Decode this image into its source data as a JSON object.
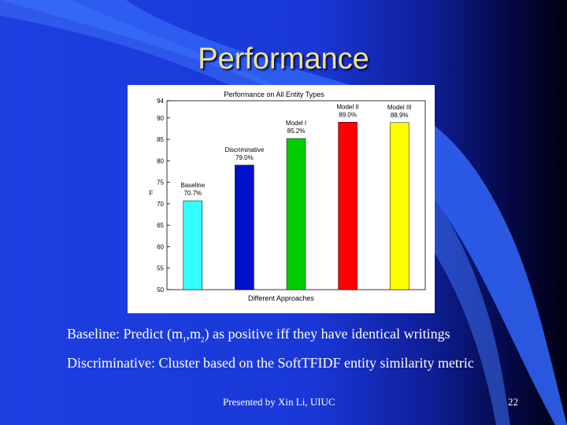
{
  "slide": {
    "title": "Performance",
    "baseline_text": {
      "prefix": "Baseline: Predict (m",
      "sub1": "1",
      "mid": ",m",
      "sub2": "2",
      "suffix": ") as positive iff they have identical writings"
    },
    "discriminative_text": "Discriminative: Cluster based on the SoftTFIDF entity similarity metric",
    "footer": "Presented by Xin Li, UIUC",
    "page_number": "22"
  },
  "colors": {
    "background": "#1d3fe0",
    "title": "#f2e28a"
  },
  "chart_data": {
    "type": "bar",
    "title": "Performance on All Entity Types",
    "xlabel": "Different Approaches",
    "ylabel": "F",
    "ylim": [
      50,
      94
    ],
    "yticks": [
      50,
      55,
      60,
      65,
      70,
      75,
      80,
      85,
      90,
      94
    ],
    "grid": false,
    "categories": [
      "Baseline",
      "Discriminative",
      "Model I",
      "Model II",
      "Model III"
    ],
    "values": [
      70.7,
      79.0,
      85.2,
      89.0,
      88.9
    ],
    "bar_labels": [
      "70.7%",
      "79.0%",
      "85.2%",
      "89.0%",
      "88.9%"
    ],
    "bar_colors": [
      "#33ffff",
      "#0011cc",
      "#00cc00",
      "#ff0000",
      "#ffff00"
    ]
  }
}
